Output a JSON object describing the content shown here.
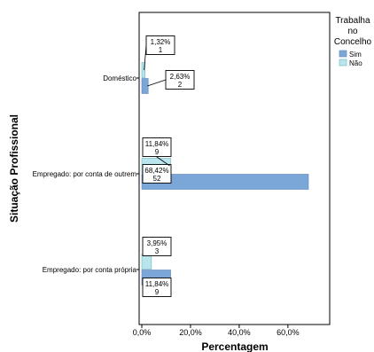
{
  "chart_data": {
    "type": "bar",
    "orientation": "horizontal",
    "xlabel": "Percentagem",
    "ylabel": "Situação Profissional",
    "xlim": [
      0,
      80
    ],
    "xticks": [
      "0,0%",
      "20,0%",
      "40,0%",
      "60,0%"
    ],
    "xtick_values": [
      0,
      20,
      40,
      60
    ],
    "categories": [
      "Doméstico",
      "Empregado: por conta de outrem",
      "Empregado: por conta própria"
    ],
    "legend": {
      "title": [
        "Trabalha",
        "no",
        "Concelho"
      ],
      "placement": "top-right"
    },
    "series": [
      {
        "name": "Sim",
        "color": "#7aa6d8",
        "values": [
          2.63,
          68.42,
          11.84
        ],
        "pct_labels": [
          "2,63%",
          "68,42%",
          "11,84%"
        ],
        "count_labels": [
          "2",
          "52",
          "9"
        ]
      },
      {
        "name": "Não",
        "color": "#b8e6ec",
        "values": [
          1.32,
          11.84,
          3.95
        ],
        "pct_labels": [
          "1,32%",
          "11,84%",
          "3,95%"
        ],
        "count_labels": [
          "1",
          "9",
          "3"
        ]
      }
    ]
  }
}
